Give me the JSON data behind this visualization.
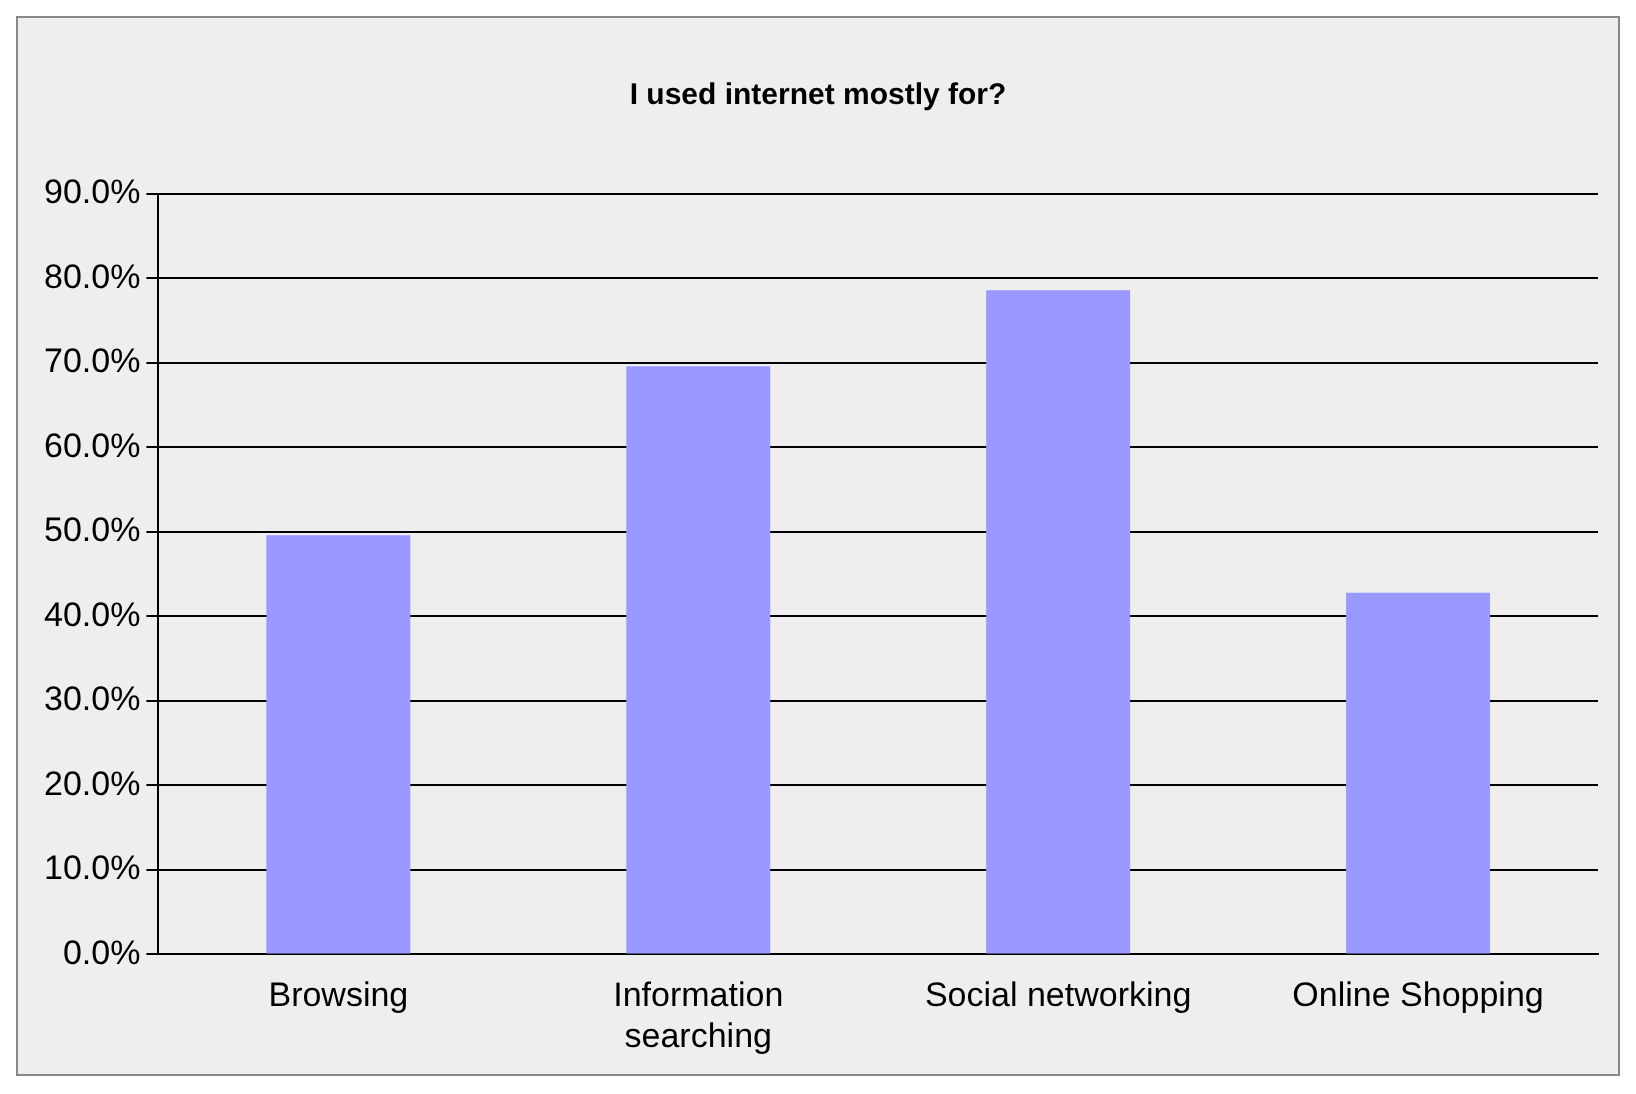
{
  "chart_data": {
    "type": "bar",
    "title": "I used internet mostly for?",
    "categories": [
      "Browsing",
      "Information searching",
      "Social networking",
      "Online Shopping"
    ],
    "values": [
      49.6,
      69.6,
      78.6,
      42.8
    ],
    "color": "#9999ff",
    "ylim": [
      0,
      90
    ],
    "yticks": [
      {
        "value": 0,
        "label": "0.0%"
      },
      {
        "value": 10,
        "label": "10.0%"
      },
      {
        "value": 20,
        "label": "20.0%"
      },
      {
        "value": 30,
        "label": "30.0%"
      },
      {
        "value": 40,
        "label": "40.0%"
      },
      {
        "value": 50,
        "label": "50.0%"
      },
      {
        "value": 60,
        "label": "60.0%"
      },
      {
        "value": 70,
        "label": "70.0%"
      },
      {
        "value": 80,
        "label": "80.0%"
      },
      {
        "value": 90,
        "label": "90.0%"
      }
    ],
    "grid": "y",
    "legend": false
  }
}
